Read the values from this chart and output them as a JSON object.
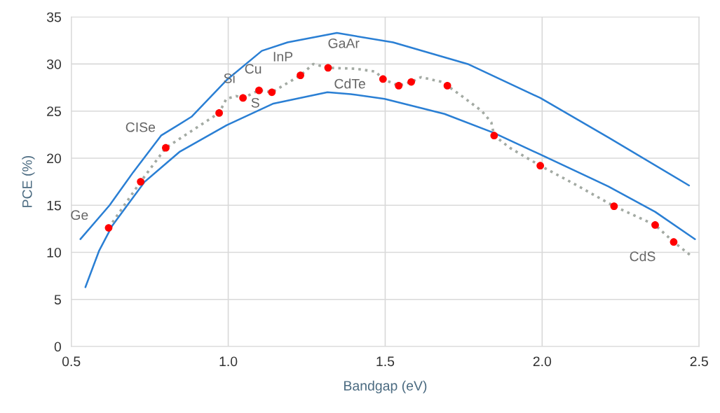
{
  "chart_data": {
    "type": "line",
    "xlabel": "Bandgap (eV)",
    "ylabel": "PCE (%)",
    "xlim": [
      0.5,
      2.5
    ],
    "ylim": [
      0,
      35
    ],
    "xticks": [
      0.5,
      {
        "value": 1.0,
        "label": "1.0"
      },
      1.5,
      {
        "value": 2.0,
        "label": "2.0"
      },
      2.5
    ],
    "yticks": [
      0,
      5,
      10,
      15,
      20,
      25,
      30,
      35
    ],
    "grid": true,
    "series": [
      {
        "color": "#2a7fd4",
        "line_style": "solid",
        "marker": "none",
        "x": [
          0.529,
          0.622,
          0.697,
          0.786,
          0.883,
          0.995,
          1.107,
          1.189,
          1.346,
          1.525,
          1.763,
          1.994,
          2.211,
          2.468
        ],
        "values": [
          11.4,
          15.0,
          18.5,
          22.4,
          24.4,
          28.3,
          31.4,
          32.3,
          33.3,
          32.3,
          30.0,
          26.4,
          22.2,
          17.1
        ]
      },
      {
        "color": "#2a7fd4",
        "line_style": "solid",
        "marker": "none",
        "x": [
          0.545,
          0.589,
          0.63,
          0.734,
          0.846,
          0.995,
          1.144,
          1.316,
          1.39,
          1.498,
          1.689,
          1.845,
          1.994,
          2.211,
          2.36,
          2.487
        ],
        "values": [
          6.3,
          10.2,
          12.8,
          17.5,
          20.7,
          23.5,
          25.8,
          27.0,
          26.8,
          26.3,
          24.7,
          22.7,
          20.4,
          17.0,
          14.3,
          11.4
        ]
      },
      {
        "color": "#a3aaa3",
        "line_style": "dotted",
        "marker": "none",
        "x": [
          0.619,
          0.721,
          0.801,
          0.971,
          0.994,
          1.025,
          1.047,
          1.098,
          1.139,
          1.23,
          1.271,
          1.318,
          1.405,
          1.469,
          1.493,
          1.543,
          1.583,
          1.614,
          1.681,
          1.698,
          1.748,
          1.808,
          1.838,
          1.847,
          1.897,
          1.994,
          2.106,
          2.229,
          2.36,
          2.419,
          2.472
        ],
        "values": [
          12.6,
          17.5,
          21.1,
          24.8,
          26.3,
          26.6,
          26.4,
          27.2,
          27.0,
          28.8,
          30.0,
          29.6,
          29.5,
          29.2,
          28.4,
          27.7,
          28.1,
          28.6,
          28.1,
          27.7,
          26.5,
          25.0,
          23.8,
          22.4,
          21.1,
          19.2,
          17.2,
          14.9,
          12.9,
          11.1,
          9.7
        ]
      },
      {
        "type": "scatter",
        "color": "#ff0000",
        "marker": "circle",
        "x": [
          0.619,
          0.721,
          0.801,
          0.971,
          1.047,
          1.098,
          1.139,
          1.23,
          1.318,
          1.493,
          1.543,
          1.583,
          1.698,
          1.847,
          1.994,
          2.229,
          2.36,
          2.419
        ],
        "values": [
          12.6,
          17.5,
          21.1,
          24.8,
          26.4,
          27.2,
          27.0,
          28.8,
          29.6,
          28.4,
          27.7,
          28.1,
          27.7,
          22.4,
          19.2,
          14.9,
          12.9,
          11.1
        ]
      }
    ],
    "annotations": [
      {
        "text": "Ge",
        "x": 0.619,
        "y": 12.6
      },
      {
        "text": "CISe",
        "x": 0.801,
        "y": 21.1
      },
      {
        "text": "Si",
        "x": 1.047,
        "y": 26.4
      },
      {
        "text": "Cu",
        "x": 1.098,
        "y": 27.2
      },
      {
        "text": "S",
        "x": 1.139,
        "y": 27.0
      },
      {
        "text": "InP",
        "x": 1.23,
        "y": 28.8
      },
      {
        "text": "GaAr",
        "x": 1.318,
        "y": 29.6
      },
      {
        "text": "CdTe",
        "x": 1.493,
        "y": 28.4
      },
      {
        "text": "CdS",
        "x": 2.419,
        "y": 11.1
      }
    ]
  }
}
